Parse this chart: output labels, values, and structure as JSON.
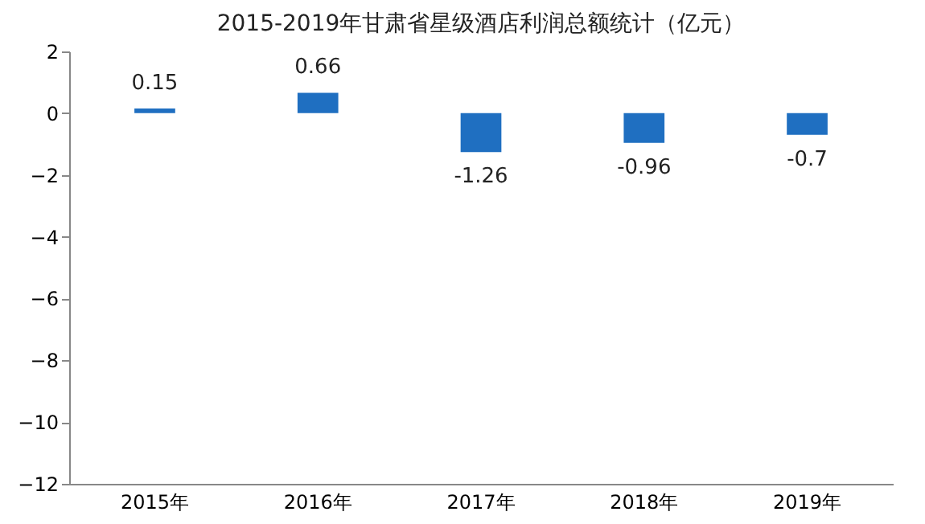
{
  "chart_data": {
    "type": "bar",
    "title": "2015-2019年甘肃省星级酒店利润总额统计（亿元）",
    "categories": [
      "2015年",
      "2016年",
      "2017年",
      "2018年",
      "2019年"
    ],
    "values": [
      0.15,
      0.66,
      -1.26,
      -0.96,
      -0.7
    ],
    "color": "#1f6fc1",
    "ylim": [
      -12,
      2
    ],
    "yticks": [
      -12,
      -10,
      -8,
      -6,
      -4,
      -2,
      0,
      2
    ],
    "data_labels": true,
    "grid": false
  }
}
